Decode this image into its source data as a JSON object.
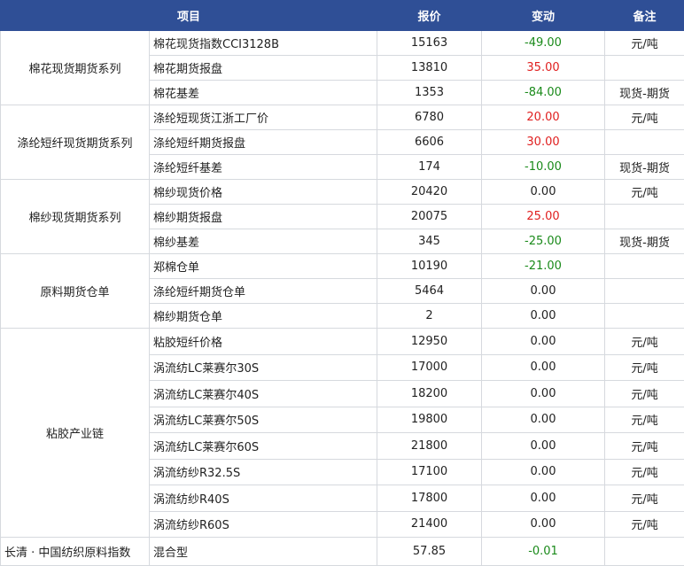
{
  "header": [
    "项目",
    "报价",
    "变动",
    "备注"
  ],
  "groups": [
    {
      "name": "棉花现货期货系列",
      "rows": [
        {
          "item": "棉花现货指数CCI3128B",
          "price": 15163,
          "change": "-49.00",
          "note": "元/吨"
        },
        {
          "item": "棉花期货报盘",
          "price": 13810,
          "change": "35.00"
        },
        {
          "item": "棉花基差",
          "price": 1353,
          "change": "-84.00",
          "note": "现货-期货"
        }
      ]
    },
    {
      "name": "涤纶短纤现货期货系列",
      "rows": [
        {
          "item": "涤纶短现货江浙工厂价",
          "price": 6780,
          "change": "20.00",
          "note": "元/吨"
        },
        {
          "item": "涤纶短纤期货报盘",
          "price": 6606,
          "change": "30.00"
        },
        {
          "item": "涤纶短纤基差",
          "price": 174,
          "change": "-10.00",
          "note": "现货-期货"
        }
      ]
    },
    {
      "name": "棉纱现货期货系列",
      "rows": [
        {
          "item": "棉纱现货价格",
          "price": 20420,
          "change": "0.00",
          "note": "元/吨"
        },
        {
          "item": "棉纱期货报盘",
          "price": 20075,
          "change": "25.00"
        },
        {
          "item": "棉纱基差",
          "price": 345,
          "change": "-25.00",
          "note": "现货-期货"
        }
      ]
    },
    {
      "name": "原料期货仓单",
      "rows": [
        {
          "item": "郑棉仓单",
          "price": 10190,
          "change": "-21.00"
        },
        {
          "item": "涤纶短纤期货仓单",
          "price": 5464,
          "change": "0.00"
        },
        {
          "item": "棉纱期货仓单",
          "price": 2,
          "change": "0.00"
        }
      ]
    },
    {
      "name": "粘胶产业链",
      "rows": [
        {
          "item": "粘胶短纤价格",
          "price": 12950,
          "change": "0.00",
          "note": "元/吨"
        },
        {
          "item": "涡流纺LC莱赛尔30S",
          "price": 17000,
          "change": "0.00",
          "note": "元/吨"
        },
        {
          "item": "涡流纺LC莱赛尔40S",
          "price": 18200,
          "change": "0.00",
          "note": "元/吨"
        },
        {
          "item": "涡流纺LC莱赛尔50S",
          "price": 19800,
          "change": "0.00",
          "note": "元/吨"
        },
        {
          "item": "涡流纺LC莱赛尔60S",
          "price": 21800,
          "change": "0.00",
          "note": "元/吨"
        },
        {
          "item": "涡流纺纱R32.5S",
          "price": 17100,
          "change": "0.00",
          "note": "元/吨"
        },
        {
          "item": "涡流纺纱R40S",
          "price": 17800,
          "change": "0.00",
          "note": "元/吨"
        },
        {
          "item": "涡流纺纱R60S",
          "price": 21400,
          "change": "0.00",
          "note": "元/吨"
        }
      ]
    },
    {
      "name": "长清 · 中国纺织原料指数",
      "rows": [
        {
          "item": "混合型",
          "price": 57.85,
          "change": "-0.01"
        }
      ]
    }
  ]
}
